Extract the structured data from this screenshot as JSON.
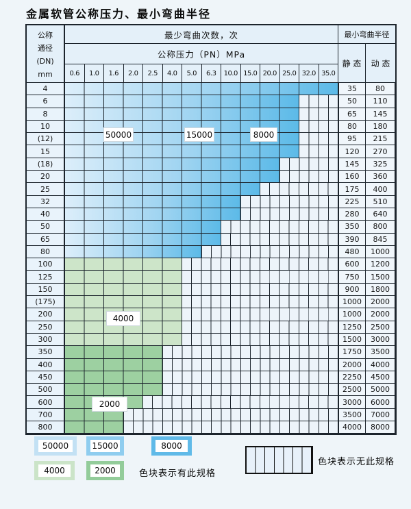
{
  "page": {
    "title": "金属软管公称压力、最小弯曲半径"
  },
  "table": {
    "header": {
      "dn_lines": [
        "公称",
        "通径",
        "(DN)",
        "mm"
      ],
      "cycles_title": "最少弯曲次数，次",
      "pressure_title": "公称压力（PN）MPa",
      "radius_title": "最小弯曲半径",
      "static_label": "静 态",
      "dynamic_label": "动 态",
      "pn_columns": [
        "0.6",
        "1.0",
        "1.6",
        "2.0",
        "2.5",
        "4.0",
        "5.0",
        "6.3",
        "10.0",
        "15.0",
        "20.0",
        "25.0",
        "32.0",
        "35.0"
      ]
    },
    "cycle_labels": [
      {
        "text": "50000"
      },
      {
        "text": "15000"
      },
      {
        "text": "8000"
      },
      {
        "text": "4000"
      },
      {
        "text": "2000"
      }
    ],
    "rows": [
      {
        "dn": "4",
        "zone": "blue",
        "spec_cols": 14,
        "max_pn": "35.0",
        "static": "35",
        "dynamic": "80"
      },
      {
        "dn": "6",
        "zone": "blue",
        "spec_cols": 12,
        "max_pn": "25.0",
        "static": "50",
        "dynamic": "110"
      },
      {
        "dn": "8",
        "zone": "blue",
        "spec_cols": 12,
        "max_pn": "25.0",
        "static": "65",
        "dynamic": "145"
      },
      {
        "dn": "10",
        "zone": "blue",
        "spec_cols": 12,
        "max_pn": "25.0",
        "static": "80",
        "dynamic": "180"
      },
      {
        "dn": "(12)",
        "zone": "blue",
        "spec_cols": 12,
        "max_pn": "25.0",
        "static": "95",
        "dynamic": "215"
      },
      {
        "dn": "15",
        "zone": "blue",
        "spec_cols": 12,
        "max_pn": "25.0",
        "static": "120",
        "dynamic": "270"
      },
      {
        "dn": "(18)",
        "zone": "blue",
        "spec_cols": 11,
        "max_pn": "20.0",
        "static": "145",
        "dynamic": "325"
      },
      {
        "dn": "20",
        "zone": "blue",
        "spec_cols": 11,
        "max_pn": "20.0",
        "static": "160",
        "dynamic": "360"
      },
      {
        "dn": "25",
        "zone": "blue",
        "spec_cols": 10,
        "max_pn": "15.0",
        "static": "175",
        "dynamic": "400"
      },
      {
        "dn": "32",
        "zone": "blue",
        "spec_cols": 9,
        "max_pn": "10.0",
        "static": "225",
        "dynamic": "510"
      },
      {
        "dn": "40",
        "zone": "blue",
        "spec_cols": 9,
        "max_pn": "10.0",
        "static": "280",
        "dynamic": "640"
      },
      {
        "dn": "50",
        "zone": "blue",
        "spec_cols": 8,
        "max_pn": "6.3",
        "static": "350",
        "dynamic": "800"
      },
      {
        "dn": "65",
        "zone": "blue",
        "spec_cols": 8,
        "max_pn": "6.3",
        "static": "390",
        "dynamic": "845"
      },
      {
        "dn": "80",
        "zone": "blue",
        "spec_cols": 7,
        "max_pn": "5.0",
        "static": "480",
        "dynamic": "1000"
      },
      {
        "dn": "100",
        "zone": "green_light",
        "spec_cols": 6,
        "max_pn": "4.0",
        "static": "600",
        "dynamic": "1200"
      },
      {
        "dn": "125",
        "zone": "green_light",
        "spec_cols": 6,
        "max_pn": "4.0",
        "static": "750",
        "dynamic": "1500"
      },
      {
        "dn": "150",
        "zone": "green_light",
        "spec_cols": 6,
        "max_pn": "4.0",
        "static": "900",
        "dynamic": "1800"
      },
      {
        "dn": "(175)",
        "zone": "green_light",
        "spec_cols": 6,
        "max_pn": "4.0",
        "static": "1000",
        "dynamic": "2000"
      },
      {
        "dn": "200",
        "zone": "green_light",
        "spec_cols": 6,
        "max_pn": "4.0",
        "static": "1000",
        "dynamic": "2000"
      },
      {
        "dn": "250",
        "zone": "green_light",
        "spec_cols": 6,
        "max_pn": "4.0",
        "static": "1250",
        "dynamic": "2500"
      },
      {
        "dn": "300",
        "zone": "green_light",
        "spec_cols": 6,
        "max_pn": "4.0",
        "static": "1500",
        "dynamic": "3000"
      },
      {
        "dn": "350",
        "zone": "green_dark",
        "spec_cols": 5,
        "max_pn": "2.5",
        "static": "1750",
        "dynamic": "3500"
      },
      {
        "dn": "400",
        "zone": "green_dark",
        "spec_cols": 5,
        "max_pn": "2.5",
        "static": "2000",
        "dynamic": "4000"
      },
      {
        "dn": "450",
        "zone": "green_dark",
        "spec_cols": 5,
        "max_pn": "2.5",
        "static": "2250",
        "dynamic": "4500"
      },
      {
        "dn": "500",
        "zone": "green_dark",
        "spec_cols": 5,
        "max_pn": "2.5",
        "static": "2500",
        "dynamic": "5000"
      },
      {
        "dn": "600",
        "zone": "green_dark",
        "spec_cols": 4,
        "max_pn": "2.0",
        "static": "3000",
        "dynamic": "6000"
      },
      {
        "dn": "700",
        "zone": "green_dark",
        "spec_cols": 3,
        "max_pn": "1.6",
        "static": "3500",
        "dynamic": "7000"
      },
      {
        "dn": "800",
        "zone": "green_dark",
        "spec_cols": 3,
        "max_pn": "1.6",
        "static": "4000",
        "dynamic": "8000"
      }
    ]
  },
  "legend": {
    "items": [
      {
        "label": "50000",
        "color": "#c3e1f4"
      },
      {
        "label": "15000",
        "color": "#8fcdef"
      },
      {
        "label": "8000",
        "color": "#60bae8"
      },
      {
        "label": "4000",
        "color": "#cbe4c8"
      },
      {
        "label": "2000",
        "color": "#93cc9a"
      }
    ],
    "has_spec_text": "色块表示有此规格",
    "no_spec_text": "色块表示无此规格"
  },
  "colors": {
    "page_bg": "#eff5f9",
    "grid_line": "#1c242c",
    "blue_gradient": [
      "#dceefa",
      "#9fd4f1",
      "#5cbae8"
    ],
    "green_light": "#cde5c9",
    "green_dark": "#9dd0a1",
    "striped_bg": "#edf4fa"
  }
}
